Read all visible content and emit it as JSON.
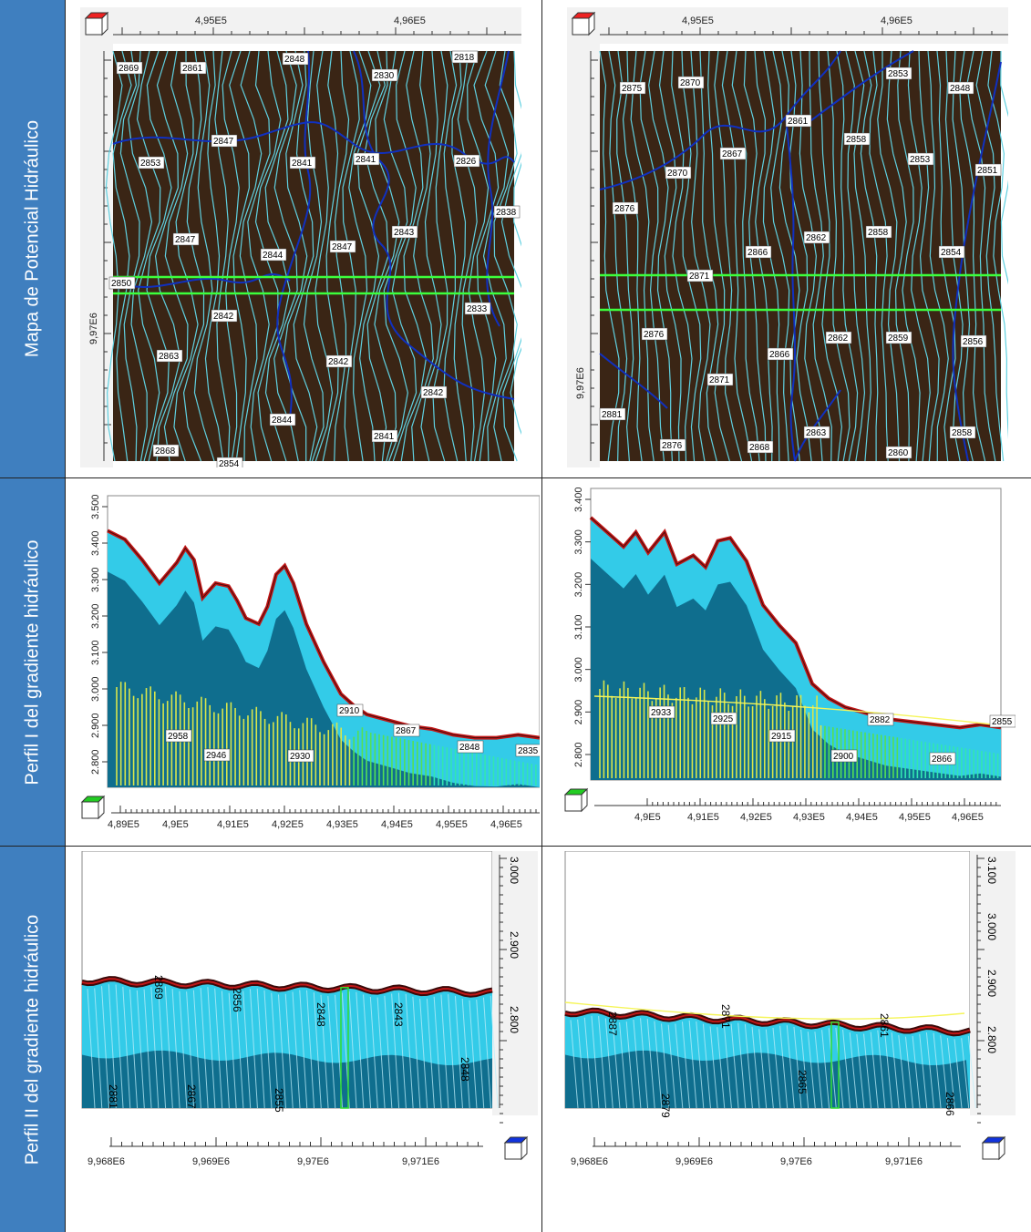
{
  "rows": [
    {
      "label": "Mapa de Potencial Hidráulico"
    },
    {
      "label": "Perfil I del gradiente hidráulico"
    },
    {
      "label": "Perfil II del gradiente hidráulico"
    }
  ],
  "map_left": {
    "x_ticks": [
      "4,95E5",
      "4,96E5"
    ],
    "y_tick": "9,97E6",
    "contour_labels": [
      "2869",
      "2861",
      "2848",
      "2830",
      "2818",
      "2847",
      "2853",
      "2841",
      "2841",
      "2826",
      "2838",
      "2847",
      "2847",
      "2843",
      "2844",
      "2850",
      "2833",
      "2842",
      "2863",
      "2842",
      "2842",
      "2844",
      "2868",
      "2854",
      "2841"
    ]
  },
  "map_right": {
    "x_ticks": [
      "4,95E5",
      "4,96E5"
    ],
    "y_tick": "9,97E6",
    "contour_labels": [
      "2875",
      "2870",
      "2853",
      "2848",
      "2861",
      "2867",
      "2858",
      "2870",
      "2853",
      "2851",
      "2876",
      "2862",
      "2858",
      "2866",
      "2854",
      "2871",
      "2876",
      "2862",
      "2859",
      "2856",
      "2866",
      "2871",
      "2881",
      "2863",
      "2858",
      "2876",
      "2868",
      "2860"
    ]
  },
  "prof1_left": {
    "y_ticks": [
      "2.800",
      "2.900",
      "3.000",
      "3.100",
      "3.200",
      "3.300",
      "3.400",
      "3.500"
    ],
    "x_ticks": [
      "4,89E5",
      "4,9E5",
      "4,91E5",
      "4,92E5",
      "4,93E5",
      "4,94E5",
      "4,95E5",
      "4,96E5"
    ],
    "head_labels": [
      "2958",
      "2946",
      "2930",
      "2910",
      "2867",
      "2848",
      "2835"
    ]
  },
  "prof1_right": {
    "y_ticks": [
      "2.800",
      "2.900",
      "3.000",
      "3.100",
      "3.200",
      "3.300",
      "3.400"
    ],
    "x_ticks": [
      "4,9E5",
      "4,91E5",
      "4,92E5",
      "4,93E5",
      "4,94E5",
      "4,95E5",
      "4,96E5"
    ],
    "head_labels": [
      "2933",
      "2925",
      "2915",
      "2900",
      "2882",
      "2866",
      "2855"
    ]
  },
  "prof2_left": {
    "y_ticks": [
      "3.000",
      "2.900",
      "2.800"
    ],
    "x_ticks": [
      "9,968E6",
      "9,969E6",
      "9,97E6",
      "9,971E6"
    ],
    "head_labels": [
      "2869",
      "2856",
      "2848",
      "2843",
      "2881",
      "2867",
      "2855",
      "2848"
    ]
  },
  "prof2_right": {
    "y_ticks": [
      "3.100",
      "3.000",
      "2.900",
      "2.800"
    ],
    "x_ticks": [
      "9,968E6",
      "9,969E6",
      "9,97E6",
      "9,971E6"
    ],
    "head_labels": [
      "2887",
      "2871",
      "2861",
      "2879",
      "2865",
      "2866"
    ]
  },
  "colors": {
    "map_bg": "#3a2515",
    "contour": "#5fd0e0",
    "river": "#1030c0",
    "section_line": "#3cff3c",
    "sky": "#33cbe8",
    "deep": "#0f6e8e",
    "surface": "#c01818",
    "head_line": "#f5f55a"
  }
}
